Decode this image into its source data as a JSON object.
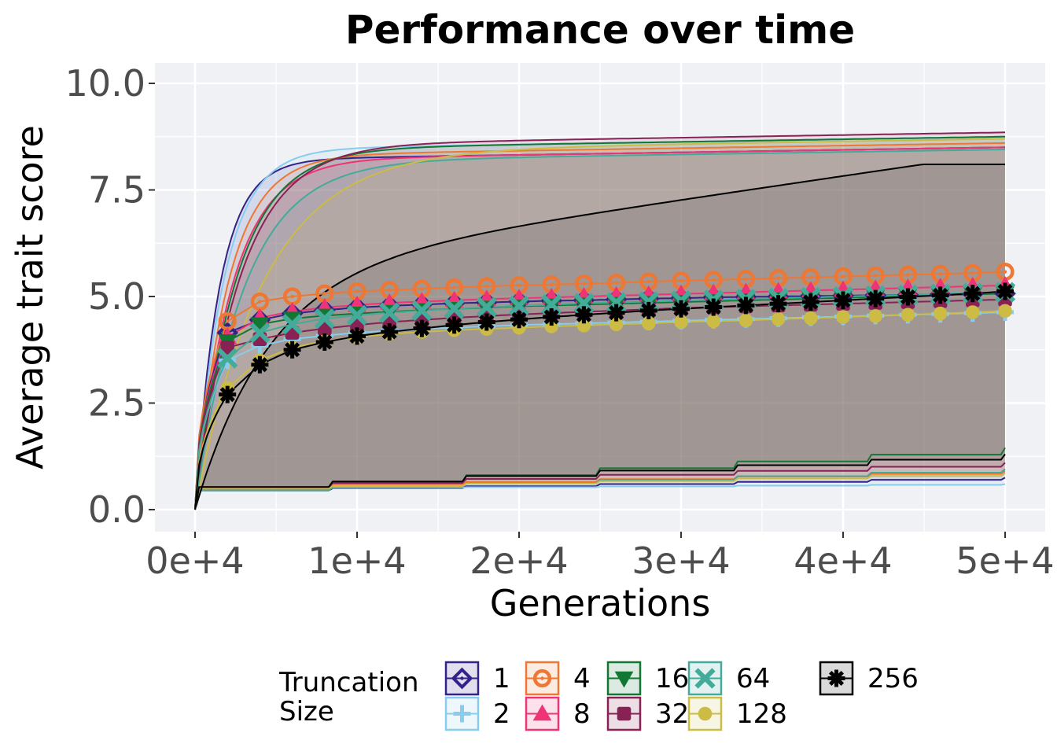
{
  "chart_data": {
    "type": "line",
    "title": "Performance over time",
    "xlabel": "Generations",
    "ylabel": "Average trait score",
    "xlim": [
      -2500,
      51000
    ],
    "ylim": [
      -0.5,
      10.5
    ],
    "x_ticks": [
      0,
      10000,
      20000,
      30000,
      40000,
      50000
    ],
    "x_tick_labels": [
      "0e+4",
      "1e+4",
      "2e+4",
      "3e+4",
      "4e+4",
      "5e+4"
    ],
    "y_ticks": [
      0,
      2.5,
      5,
      7.5,
      10
    ],
    "y_tick_labels": [
      "0.0",
      "2.5",
      "5.0",
      "7.5",
      "10.0"
    ],
    "grid": true,
    "legend": {
      "title": [
        "Truncation",
        "Size"
      ],
      "position": "bottom"
    },
    "marker_x": [
      2000,
      4000,
      6000,
      8000,
      10000,
      12000,
      14000,
      16000,
      18000,
      20000,
      22000,
      24000,
      26000,
      28000,
      30000,
      32000,
      34000,
      36000,
      38000,
      40000,
      42000,
      44000,
      46000,
      48000,
      50000
    ],
    "series": [
      {
        "name": "1",
        "color": "#332288",
        "shape": "diamond",
        "max": 8.5,
        "min": 0.75,
        "mean": [
          4.15,
          4.45,
          4.6,
          4.68,
          4.74,
          4.78,
          4.81,
          4.84,
          4.86,
          4.88,
          4.9,
          4.91,
          4.93,
          4.95,
          4.96,
          4.98,
          4.99,
          5.0,
          5.01,
          5.02,
          5.03,
          5.04,
          5.05,
          5.06,
          5.07
        ]
      },
      {
        "name": "2",
        "color": "#88CCEE",
        "shape": "plus",
        "max": 8.75,
        "min": 0.6,
        "mean": [
          3.5,
          3.85,
          4.0,
          4.08,
          4.15,
          4.2,
          4.24,
          4.27,
          4.3,
          4.33,
          4.35,
          4.37,
          4.39,
          4.41,
          4.43,
          4.45,
          4.47,
          4.49,
          4.51,
          4.53,
          4.55,
          4.57,
          4.59,
          4.61,
          4.63
        ]
      },
      {
        "name": "4",
        "color": "#EE7733",
        "shape": "circle-open",
        "max": 8.6,
        "min": 0.9,
        "mean": [
          4.42,
          4.88,
          5.0,
          5.07,
          5.12,
          5.15,
          5.18,
          5.21,
          5.24,
          5.26,
          5.28,
          5.3,
          5.32,
          5.35,
          5.37,
          5.39,
          5.41,
          5.43,
          5.45,
          5.47,
          5.49,
          5.51,
          5.53,
          5.55,
          5.58
        ]
      },
      {
        "name": "8",
        "color": "#EE3377",
        "shape": "triangle",
        "max": 8.5,
        "min": 0.95,
        "mean": [
          4.05,
          4.5,
          4.65,
          4.74,
          4.8,
          4.85,
          4.88,
          4.91,
          4.94,
          4.96,
          4.98,
          5.0,
          5.02,
          5.04,
          5.06,
          5.08,
          5.1,
          5.12,
          5.14,
          5.16,
          5.18,
          5.2,
          5.22,
          5.24,
          5.26
        ]
      },
      {
        "name": "16",
        "color": "#117733",
        "shape": "triangle-down",
        "max": 8.75,
        "min": 1.45,
        "mean": [
          3.95,
          4.35,
          4.48,
          4.55,
          4.6,
          4.64,
          4.68,
          4.71,
          4.74,
          4.77,
          4.79,
          4.81,
          4.83,
          4.85,
          4.87,
          4.89,
          4.91,
          4.93,
          4.95,
          4.97,
          4.99,
          5.01,
          5.03,
          5.05,
          5.07
        ]
      },
      {
        "name": "32",
        "color": "#882255",
        "shape": "square",
        "max": 8.85,
        "min": 1.1,
        "mean": [
          3.8,
          4.0,
          4.15,
          4.25,
          4.33,
          4.4,
          4.45,
          4.5,
          4.54,
          4.58,
          4.61,
          4.64,
          4.67,
          4.7,
          4.73,
          4.75,
          4.77,
          4.79,
          4.81,
          4.83,
          4.85,
          4.87,
          4.89,
          4.91,
          4.93
        ]
      },
      {
        "name": "64",
        "color": "#44AA99",
        "shape": "x",
        "max": 8.45,
        "min": 0.95,
        "mean": [
          3.55,
          4.15,
          4.35,
          4.48,
          4.56,
          4.62,
          4.67,
          4.71,
          4.75,
          4.78,
          4.81,
          4.84,
          4.86,
          4.88,
          4.9,
          4.92,
          4.94,
          4.96,
          4.98,
          5.0,
          5.02,
          5.04,
          5.06,
          5.08,
          5.1
        ]
      },
      {
        "name": "128",
        "color": "#CCBB44",
        "shape": "circle",
        "max": 8.7,
        "min": 0.85,
        "mean": [
          2.85,
          3.5,
          3.8,
          3.95,
          4.05,
          4.12,
          4.17,
          4.21,
          4.24,
          4.27,
          4.3,
          4.32,
          4.35,
          4.37,
          4.4,
          4.42,
          4.44,
          4.47,
          4.49,
          4.52,
          4.54,
          4.57,
          4.6,
          4.63,
          4.66
        ]
      },
      {
        "name": "256",
        "color": "#000000",
        "shape": "asterisk",
        "max": 8.1,
        "min": 1.3,
        "mean": [
          2.7,
          3.4,
          3.75,
          3.93,
          4.07,
          4.17,
          4.25,
          4.33,
          4.4,
          4.46,
          4.52,
          4.57,
          4.62,
          4.67,
          4.71,
          4.75,
          4.79,
          4.83,
          4.87,
          4.91,
          4.95,
          4.99,
          5.03,
          5.07,
          5.12
        ]
      }
    ]
  }
}
